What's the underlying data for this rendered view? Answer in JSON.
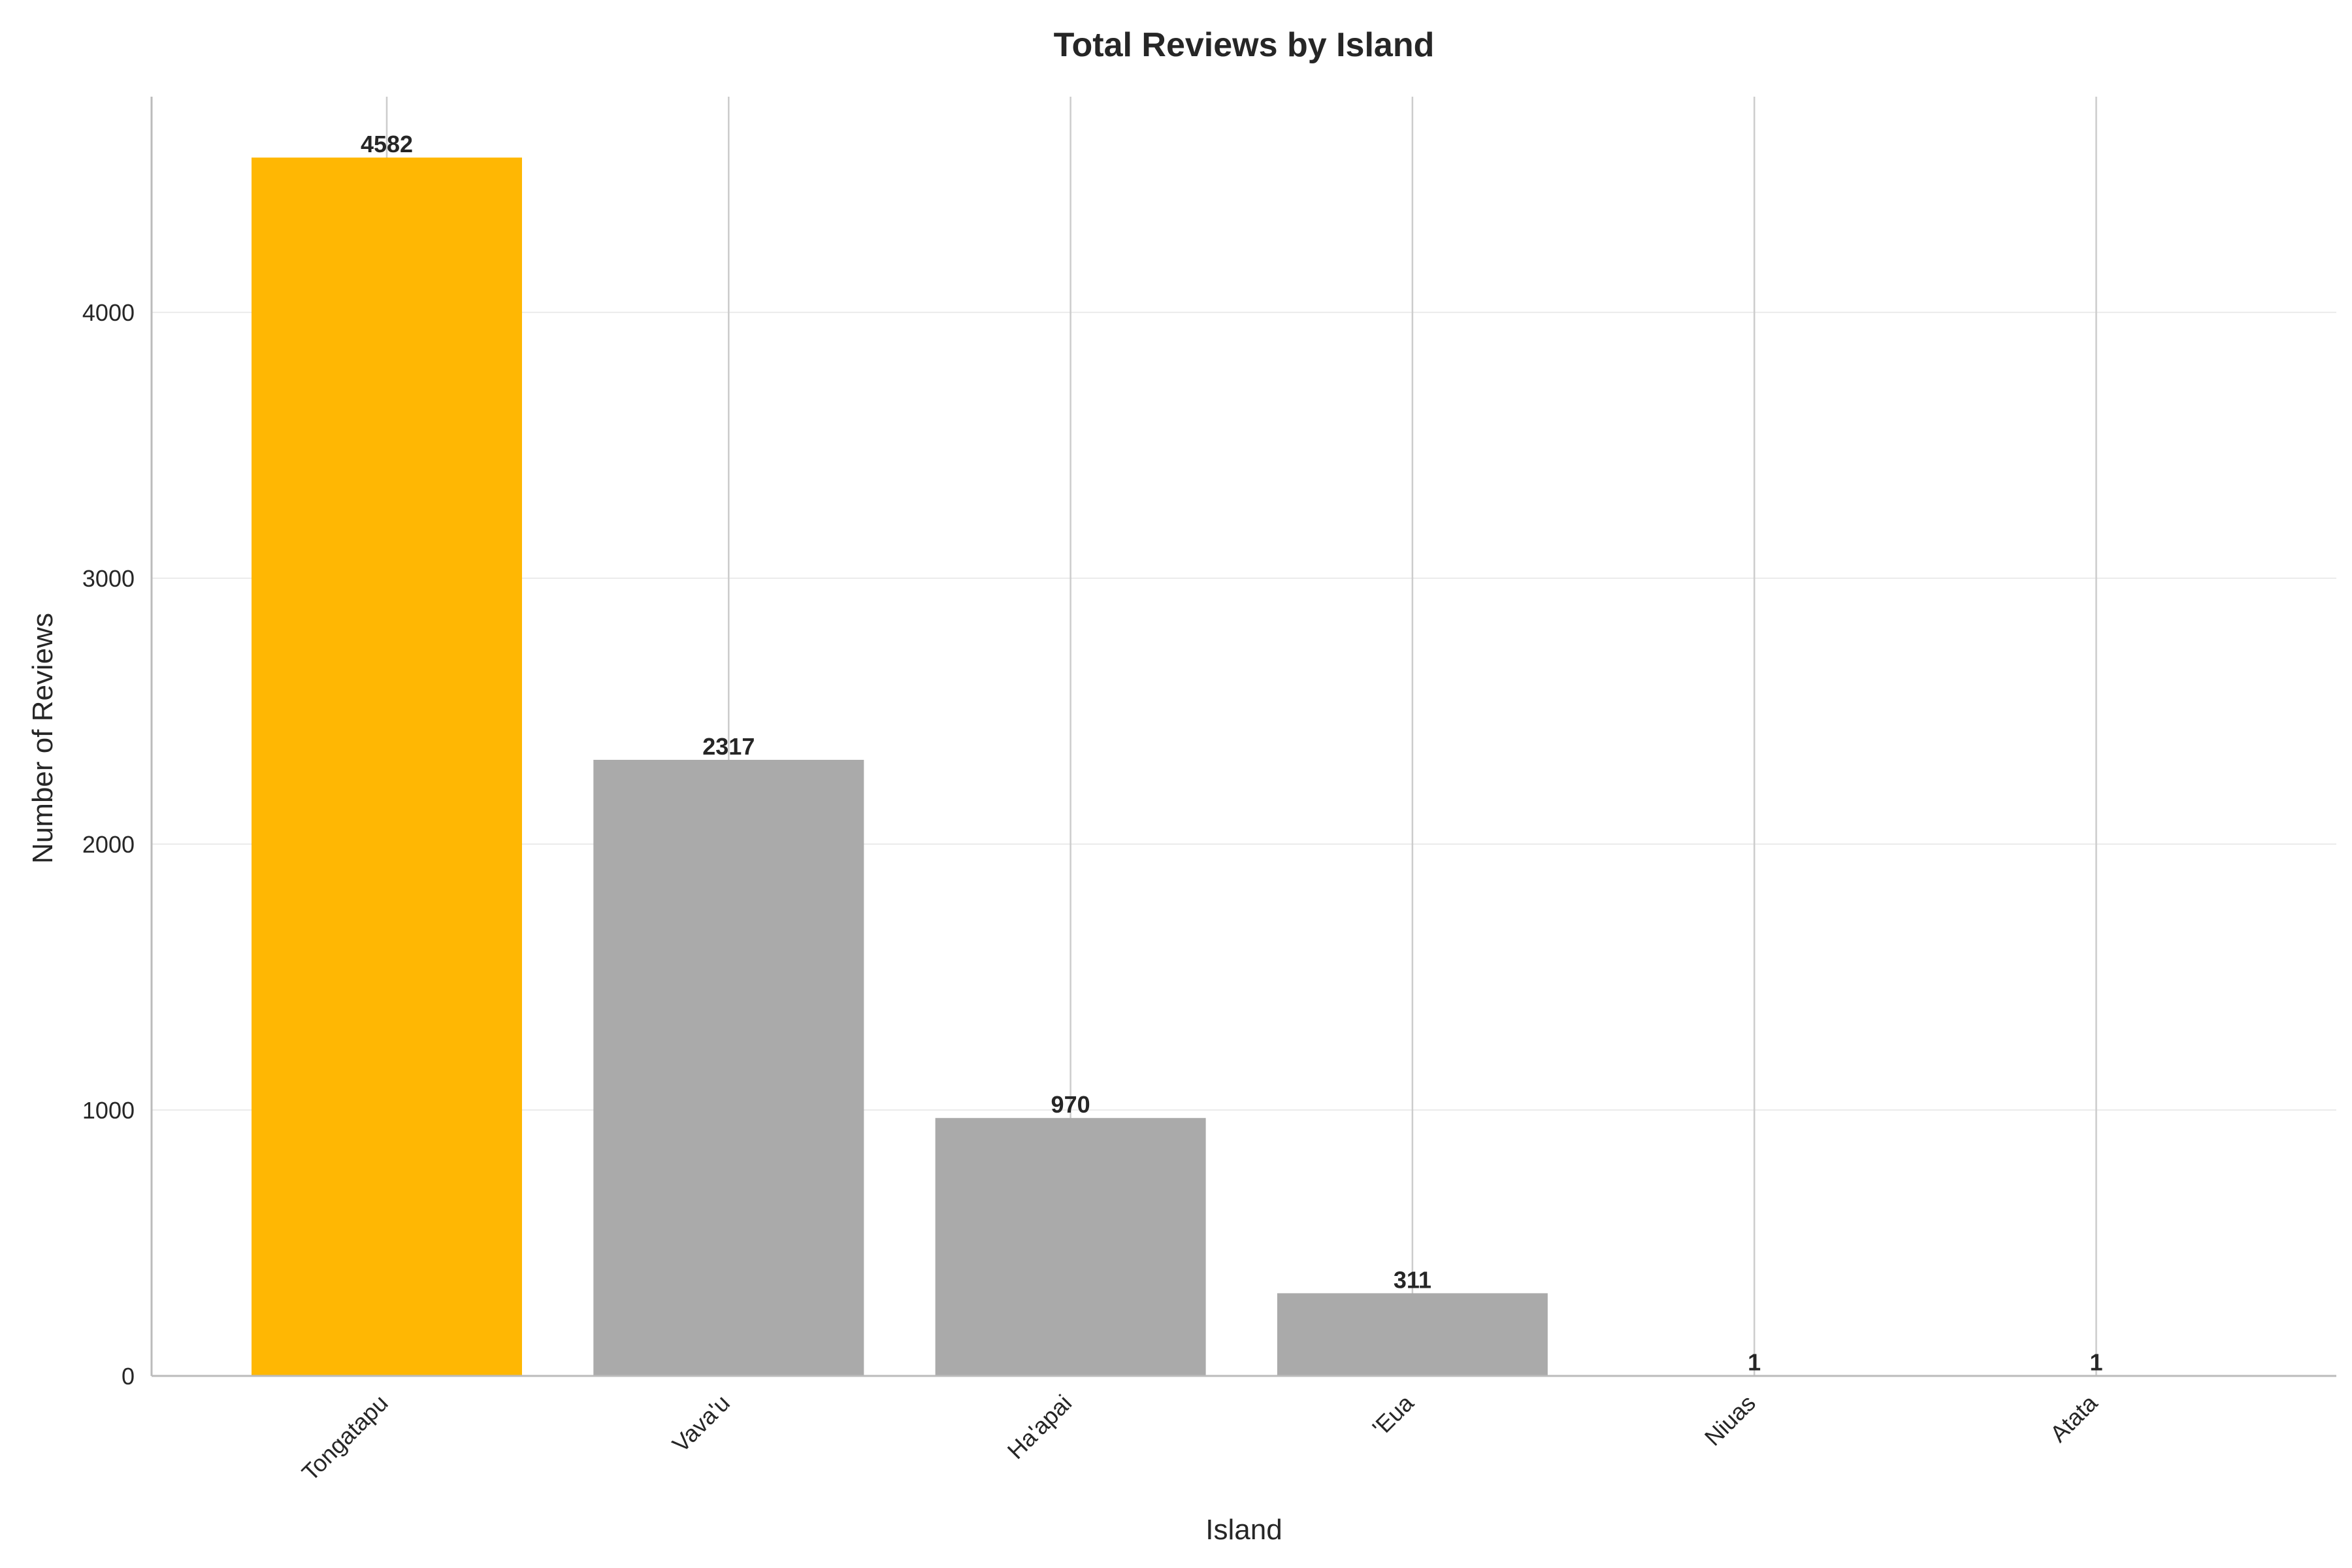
{
  "chart_data": {
    "type": "bar",
    "title": "Total Reviews by Island",
    "xlabel": "Island",
    "ylabel": "Number of Reviews",
    "categories": [
      "Tongatapu",
      "Vava'u",
      "Ha'apai",
      "'Eua",
      "Niuas",
      "Atata"
    ],
    "values": [
      4582,
      2317,
      970,
      311,
      1,
      1
    ],
    "data_labels": [
      "4582",
      "2317",
      "970",
      "311",
      "1",
      "1"
    ],
    "yticks": [
      0,
      1000,
      2000,
      3000,
      4000
    ],
    "ytick_labels": [
      "0",
      "1000",
      "2000",
      "3000",
      "4000"
    ],
    "ylim": [
      0,
      4811
    ],
    "grid": true,
    "x_tick_rotation": "45 degrees",
    "colors": {
      "highlight": "#FFB703",
      "default": "#AAAAAA",
      "axis": "#BBBBBB",
      "grid_y": "#EBEBEB",
      "grid_x": "#CCCCCC",
      "text": "#262626"
    },
    "highlight_index": 0
  }
}
